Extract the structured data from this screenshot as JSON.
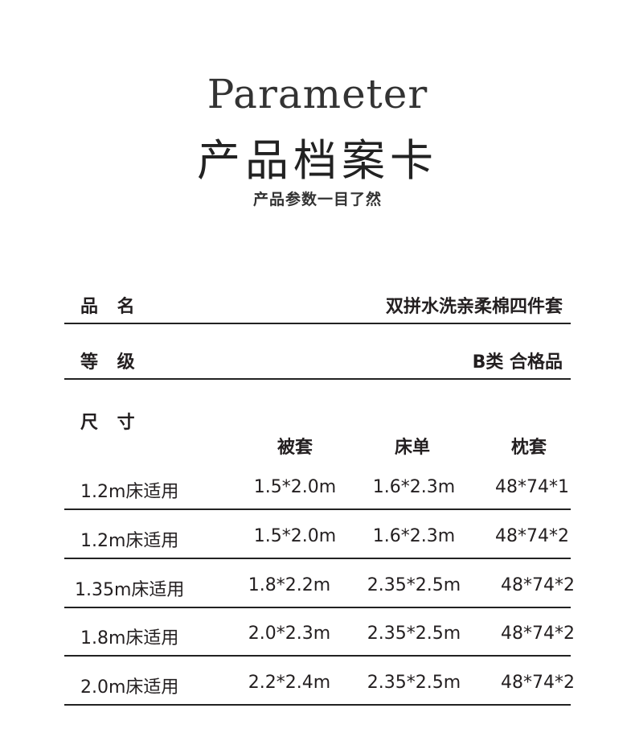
{
  "header": {
    "title_en": "Parameter",
    "title_cn": "产品档案卡",
    "subtitle": "产品参数一目了然"
  },
  "fields": [
    {
      "label": "品 名",
      "value": "双拼水洗亲柔棉四件套"
    },
    {
      "label": "等 级",
      "value": "B类 合格品"
    }
  ],
  "size": {
    "label": "尺 寸",
    "columns": [
      "被套",
      "床单",
      "枕套"
    ],
    "rows": [
      {
        "bed": "1.2m床适用",
        "duvet": "1.5*2.0m",
        "sheet": "1.6*2.3m",
        "pillow": "48*74*1"
      },
      {
        "bed": "1.2m床适用",
        "duvet": "1.5*2.0m",
        "sheet": "1.6*2.3m",
        "pillow": "48*74*2"
      },
      {
        "bed": "1.35m床适用",
        "duvet": "1.8*2.2m",
        "sheet": "2.35*2.5m",
        "pillow": "48*74*2"
      },
      {
        "bed": "1.8m床适用",
        "duvet": "2.0*2.3m",
        "sheet": "2.35*2.5m",
        "pillow": "48*74*2"
      },
      {
        "bed": "2.0m床适用",
        "duvet": "2.2*2.4m",
        "sheet": "2.35*2.5m",
        "pillow": "48*74*2"
      }
    ]
  }
}
